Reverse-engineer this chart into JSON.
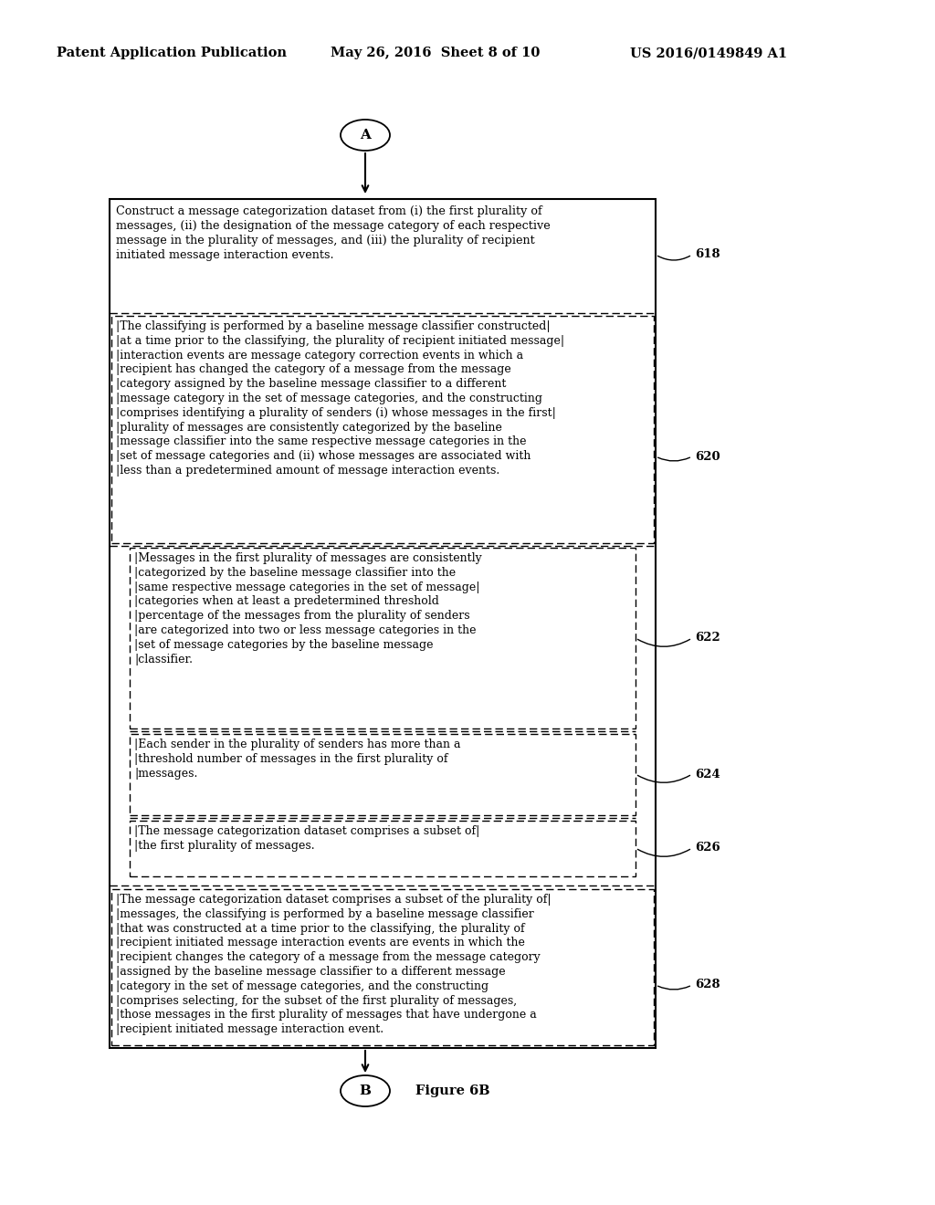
{
  "header_left": "Patent Application Publication",
  "header_mid": "May 26, 2016  Sheet 8 of 10",
  "header_right": "US 2016/0149849 A1",
  "connector_top": "A",
  "connector_bottom": "B",
  "figure_label": "Figure 6B",
  "box618_text": "Construct a message categorization dataset from (i) the first plurality of\nmessages, (ii) the designation of the message category of each respective\nmessage in the plurality of messages, and (iii) the plurality of recipient\ninitiiated message interaction events.",
  "box618_label": "618",
  "box620_text": "│The classifying is performed by a baseline message classifier constructed│\n│at a time prior to the classifying, the plurality of recipient initiated message│\n│interaction events are message category correction events in which a       │\n│recipient has changed the category of a message from the message             │\n│category assigned by the baseline message classifier to a different          │\n│message category in the set of message categories, and the constructing      │\n│comprises identifying a plurality of senders (i) whose messages in the first│\n│plurality of messages are consistently categorized by the baseline            │\n│message classifier into the same respective message categories in the        │\n│set of message categories and (ii) whose messages are associated with        │\n│less than a predetermined amount of message interaction events.              │",
  "box620_label": "620",
  "box622_text": "│Messages in the first plurality of messages are consistently│\n│categorized by the baseline message classifier into the      │\n│same respective message categories in the set of message│\n│categories when at least a predetermined threshold           │\n│percentage of the messages from the plurality of senders     │\n│are categorized into two or less message categories in the   │\n│set of message categories by the baseline message            │\n│classifier.                                                  │",
  "box622_label": "622",
  "box624_text": "│Each sender in the plurality of senders has more than a│\n│threshold number of messages in the first plurality of  │\n│messages.                                               │",
  "box624_label": "624",
  "box626_text": "│The message categorization dataset comprises a subset of│\n│the first plurality of messages.                         │",
  "box626_label": "626",
  "box628_text": "│The message categorization dataset comprises a subset of the plurality of│\n│messages, the classifying is performed by a baseline message classifier    │\n│that was constructed at a time prior to the classifying, the plurality of  │\n│recipient initiated message interaction events are events in which the     │\n│recipient changes the category of a message from the message category      │\n│assigned by the baseline message classifier to a different message         │\n│category in the set of message categories, and the constructing            │\n│comprises selecting, for the subset of the first plurality of messages,    │\n│those messages in the first plurality of messages that have undergone a    │\n│recipient initiated message interaction event.                             │",
  "box628_label": "628",
  "bg_color": "#ffffff",
  "text_color": "#000000"
}
